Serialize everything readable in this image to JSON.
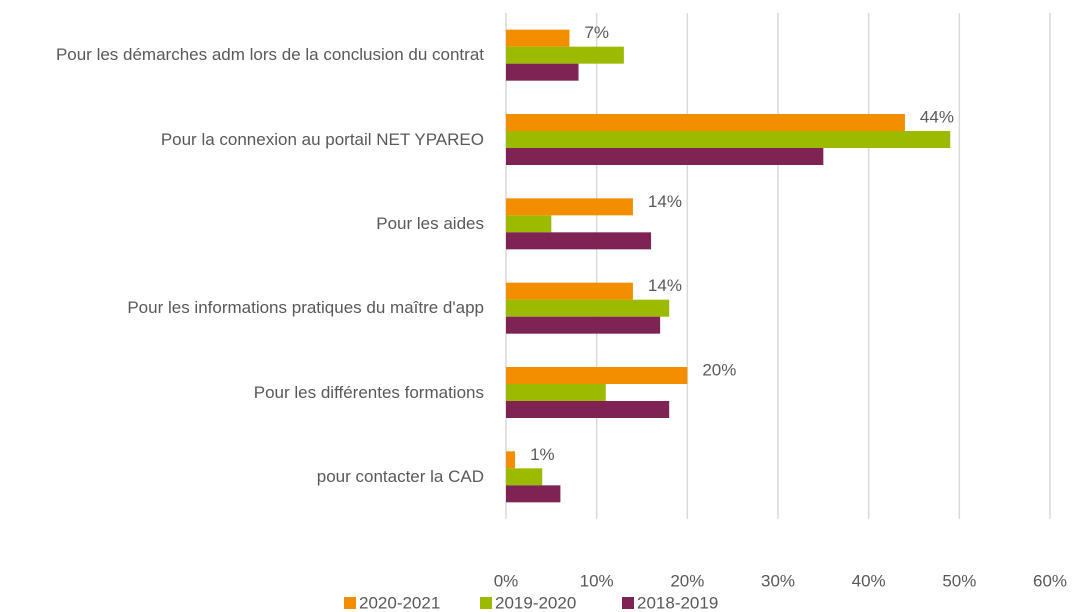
{
  "chart_data": {
    "type": "hbar",
    "categories": [
      "Pour les démarches adm lors de la conclusion du contrat",
      "Pour la connexion au portail NET YPAREO",
      "Pour les aides",
      "Pour les informations pratiques du maître d'app",
      "Pour les différentes formations",
      "pour contacter la CAD"
    ],
    "series": [
      {
        "name": "2020-2021",
        "color": "#f28e00",
        "values": [
          7,
          44,
          14,
          14,
          20,
          1
        ],
        "value_labels": [
          "7%",
          "44%",
          "14%",
          "14%",
          "20%",
          "1%"
        ]
      },
      {
        "name": "2019-2020",
        "color": "#9cba00",
        "values": [
          13,
          49,
          5,
          18,
          11,
          4
        ]
      },
      {
        "name": "2018-2019",
        "color": "#7f2355",
        "values": [
          8,
          35,
          16,
          17,
          18,
          6
        ]
      }
    ],
    "xlim": [
      0,
      60
    ],
    "xticks": [
      {
        "value": 0,
        "label": "0%"
      },
      {
        "value": 10,
        "label": "10%"
      },
      {
        "value": 20,
        "label": "20%"
      },
      {
        "value": 30,
        "label": "30%"
      },
      {
        "value": 40,
        "label": "40%"
      },
      {
        "value": 50,
        "label": "50%"
      },
      {
        "value": 60,
        "label": "60%"
      }
    ],
    "grid": true,
    "legend": "bottom"
  }
}
